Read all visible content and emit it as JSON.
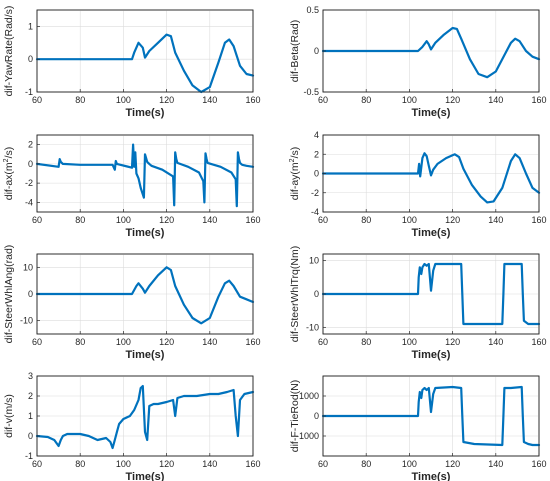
{
  "figure": {
    "line_color": "#0072BD",
    "axis_color": "#262626",
    "grid_color": "#dcdcdc"
  },
  "chart_data": [
    {
      "type": "line",
      "ylabel": "dif-YawRate(Rad/s)",
      "xlabel": "Time(s)",
      "xlim": [
        60,
        160
      ],
      "ylim": [
        -1,
        1.5
      ],
      "xticks": [
        60,
        80,
        100,
        120,
        140,
        160
      ],
      "yticks": [
        -1,
        0,
        1
      ],
      "x": [
        60,
        80,
        100,
        104,
        105,
        107,
        109,
        110,
        112,
        116,
        120,
        122,
        124,
        128,
        132,
        136,
        140,
        144,
        147,
        149,
        151,
        154,
        157,
        160
      ],
      "y": [
        0,
        0,
        0,
        0,
        0.2,
        0.5,
        0.35,
        0.05,
        0.25,
        0.5,
        0.75,
        0.7,
        0.2,
        -0.35,
        -0.8,
        -1.0,
        -0.85,
        -0.1,
        0.5,
        0.6,
        0.4,
        -0.2,
        -0.45,
        -0.5
      ]
    },
    {
      "type": "line",
      "ylabel": "dif-Beta(Rad)",
      "xlabel": "Time(s)",
      "xlim": [
        60,
        160
      ],
      "ylim": [
        -0.5,
        0.5
      ],
      "xticks": [
        60,
        80,
        100,
        120,
        140,
        160
      ],
      "yticks": [
        -0.5,
        0,
        0.5
      ],
      "x": [
        60,
        80,
        100,
        104,
        106,
        108,
        109,
        110,
        112,
        116,
        120,
        122,
        124,
        128,
        132,
        136,
        140,
        144,
        147,
        149,
        151,
        154,
        157,
        160
      ],
      "y": [
        0,
        0,
        0,
        0,
        0.05,
        0.12,
        0.08,
        0.02,
        0.1,
        0.2,
        0.28,
        0.27,
        0.15,
        -0.1,
        -0.28,
        -0.32,
        -0.25,
        -0.05,
        0.1,
        0.15,
        0.12,
        0,
        -0.07,
        -0.1
      ]
    },
    {
      "type": "line",
      "ylabel": "dif-ax(m^2/s)",
      "xlabel": "Time(s)",
      "xlim": [
        60,
        160
      ],
      "ylim": [
        -5,
        3
      ],
      "xticks": [
        60,
        80,
        100,
        120,
        140,
        160
      ],
      "yticks": [
        -4,
        -2,
        0,
        2
      ],
      "x": [
        60,
        70,
        70.5,
        71,
        72,
        80,
        95,
        96,
        96.5,
        97,
        104,
        104.5,
        105,
        105.5,
        106,
        107,
        108,
        109.5,
        110,
        110.5,
        111,
        112,
        113,
        118,
        123,
        123.5,
        124,
        124.5,
        125,
        130,
        135,
        137,
        137.5,
        138,
        138.5,
        139,
        145,
        150,
        152,
        152.5,
        153,
        153.5,
        154,
        155,
        157,
        160
      ],
      "y": [
        0,
        -0.3,
        0.5,
        0.2,
        0,
        -0.1,
        -0.1,
        -0.6,
        0.3,
        0,
        -0.4,
        2.0,
        -0.3,
        1.2,
        -1.0,
        -1.5,
        -2.5,
        -3.5,
        1.0,
        0.6,
        0.2,
        0,
        -0.2,
        -0.6,
        -1.3,
        -4.3,
        1.2,
        0.5,
        0.1,
        -0.3,
        -0.9,
        -1.8,
        -4.0,
        1.1,
        0.5,
        0.1,
        -0.3,
        -0.9,
        -1.6,
        -4.4,
        1.2,
        0.5,
        0.1,
        -0.1,
        -0.2,
        -0.3
      ]
    },
    {
      "type": "line",
      "ylabel": "dif-ay(m^2/s)",
      "xlabel": "Time(s)",
      "xlim": [
        60,
        160
      ],
      "ylim": [
        -4,
        4
      ],
      "xticks": [
        60,
        80,
        100,
        120,
        140,
        160
      ],
      "yticks": [
        -4,
        -2,
        0,
        2,
        4
      ],
      "x": [
        60,
        80,
        100,
        104,
        104.5,
        105,
        106,
        107,
        108,
        109,
        110,
        111,
        113,
        117,
        121,
        123,
        125,
        129,
        133,
        136,
        139,
        143,
        147,
        149,
        151,
        154,
        157,
        160
      ],
      "y": [
        0,
        0,
        0,
        0,
        1.0,
        -0.3,
        1.6,
        2.1,
        1.8,
        0.8,
        -0.2,
        0.4,
        1.0,
        1.6,
        2.0,
        1.7,
        0.5,
        -1.2,
        -2.4,
        -3.0,
        -2.9,
        -1.5,
        1.3,
        2.0,
        1.6,
        0,
        -1.5,
        -2.0
      ]
    },
    {
      "type": "line",
      "ylabel": "dif-SteerWhlAng(rad)",
      "xlabel": "Time(s)",
      "xlim": [
        60,
        160
      ],
      "ylim": [
        -15,
        15
      ],
      "xticks": [
        60,
        80,
        100,
        120,
        140,
        160
      ],
      "yticks": [
        -10,
        0,
        10
      ],
      "x": [
        60,
        80,
        100,
        104,
        106,
        107,
        109,
        110,
        112,
        116,
        120,
        122,
        124,
        128,
        132,
        136,
        140,
        144,
        147,
        149,
        151,
        154,
        157,
        160
      ],
      "y": [
        0,
        0,
        0,
        0,
        3,
        4,
        2,
        0.5,
        3,
        7,
        10,
        9,
        3,
        -4,
        -9,
        -11,
        -9,
        -1,
        4,
        5,
        3,
        -1,
        -2,
        -3
      ]
    },
    {
      "type": "line",
      "ylabel": "dif-SteerWhlTrq(Nm)",
      "xlabel": "Time(s)",
      "xlim": [
        60,
        160
      ],
      "ylim": [
        -12,
        12
      ],
      "xticks": [
        60,
        80,
        100,
        120,
        140,
        160
      ],
      "yticks": [
        -10,
        0,
        10
      ],
      "x": [
        60,
        80,
        104,
        104.3,
        104.8,
        105.5,
        106,
        107,
        108,
        109,
        110,
        111,
        112,
        120,
        124,
        124.5,
        125,
        130,
        143,
        143.5,
        144,
        147,
        152,
        152.5,
        153,
        155,
        157,
        160
      ],
      "y": [
        0,
        0,
        0,
        5,
        8,
        6,
        8,
        9,
        8.5,
        9,
        1,
        7,
        9,
        9,
        9,
        0,
        -9,
        -9,
        -9,
        0,
        9,
        9,
        9,
        0,
        -8,
        -9,
        -9,
        -9
      ]
    },
    {
      "type": "line",
      "ylabel": "dif-v(m/s)",
      "xlabel": "Time(s)",
      "xlim": [
        60,
        160
      ],
      "ylim": [
        -1,
        3
      ],
      "xticks": [
        60,
        80,
        100,
        120,
        140,
        160
      ],
      "yticks": [
        -1,
        0,
        1,
        2,
        3
      ],
      "x": [
        60,
        65,
        68,
        70,
        71,
        72,
        74,
        80,
        84,
        88,
        92,
        94,
        95,
        96,
        97,
        98,
        100,
        103,
        105,
        107,
        108,
        109,
        110,
        111,
        112,
        114,
        116,
        120,
        123,
        124,
        125,
        128,
        134,
        140,
        144,
        148,
        151,
        152,
        153,
        154,
        156,
        160
      ],
      "y": [
        0,
        -0.05,
        -0.2,
        -0.5,
        -0.2,
        0,
        0.1,
        0.1,
        0,
        -0.2,
        -0.1,
        -0.3,
        -0.6,
        -0.2,
        0.2,
        0.6,
        0.85,
        1.0,
        1.3,
        1.8,
        2.4,
        2.5,
        0.2,
        -0.2,
        1.5,
        1.6,
        1.6,
        1.7,
        1.8,
        1.0,
        1.9,
        2.0,
        2.0,
        2.1,
        2.1,
        2.2,
        2.3,
        1.0,
        0.0,
        1.8,
        2.1,
        2.2
      ]
    },
    {
      "type": "line",
      "ylabel": "dif-F-TieRod(N)",
      "xlabel": "Time(s)",
      "xlim": [
        60,
        160
      ],
      "ylim": [
        -2000,
        2000
      ],
      "xticks": [
        60,
        80,
        100,
        120,
        140,
        160
      ],
      "yticks": [
        -1000,
        0,
        1000
      ],
      "x": [
        60,
        80,
        104,
        104.3,
        104.8,
        105.5,
        106,
        107,
        108,
        109,
        110,
        111,
        112,
        120,
        124,
        124.5,
        125,
        130,
        143,
        143.5,
        144,
        147,
        152,
        152.5,
        153,
        155,
        157,
        160
      ],
      "y": [
        0,
        0,
        0,
        700,
        1200,
        900,
        1300,
        1400,
        1300,
        1400,
        200,
        1100,
        1400,
        1450,
        1400,
        0,
        -1300,
        -1400,
        -1450,
        0,
        1400,
        1400,
        1450,
        0,
        -1300,
        -1400,
        -1450,
        -1450
      ]
    }
  ]
}
